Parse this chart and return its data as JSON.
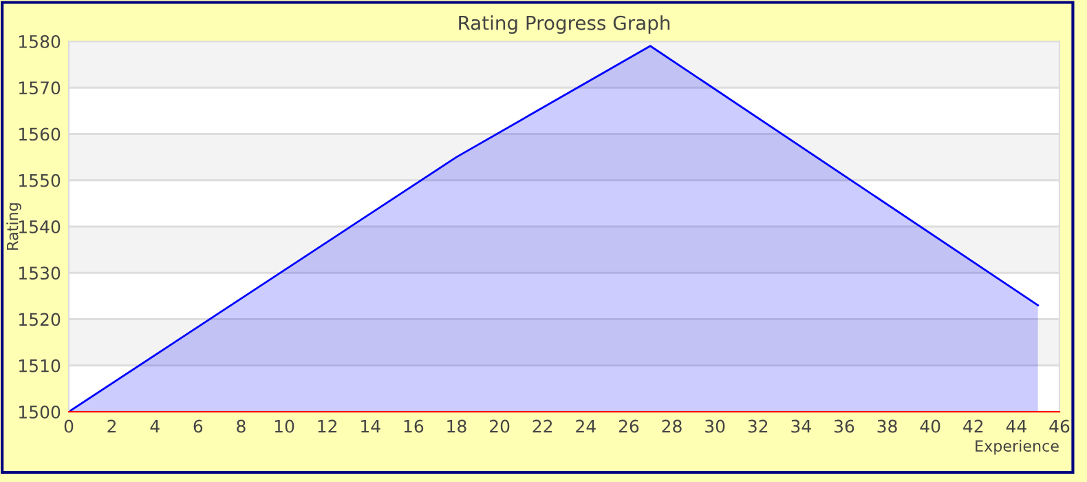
{
  "chart_data": {
    "type": "area",
    "title": "Rating Progress Graph",
    "xlabel": "Experience",
    "ylabel": "Rating",
    "x": [
      0,
      18,
      27,
      45
    ],
    "series": [
      {
        "color": "#0000ff",
        "values": [
          1500,
          1555,
          1579,
          1523
        ]
      }
    ],
    "xlim": [
      0,
      46
    ],
    "xticks": [
      0,
      2,
      4,
      6,
      8,
      10,
      12,
      14,
      16,
      18,
      20,
      22,
      24,
      26,
      28,
      30,
      32,
      34,
      36,
      38,
      40,
      42,
      44,
      46
    ],
    "ylim": [
      1500,
      1580
    ],
    "yticks": [
      1500,
      1510,
      1520,
      1530,
      1540,
      1550,
      1560,
      1570,
      1580
    ],
    "grid": "y"
  }
}
